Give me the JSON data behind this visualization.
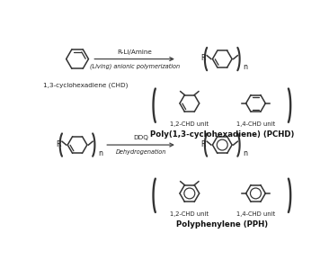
{
  "bg_color": "#ffffff",
  "line_color": "#333333",
  "figsize": [
    3.66,
    3.09
  ],
  "dpi": 100,
  "label_chd": "1,3-cyclohexadiene (CHD)",
  "label_pchd": "Poly(1,3-cyclohexadiene) (PCHD)",
  "label_pph": "Polyphenylene (PPH)",
  "reaction1_top": "R-Li/Amine",
  "reaction1_bot": "(Living) anionic polymerization",
  "reaction2_top": "DDQ",
  "reaction2_bot": "Dehydrogenation",
  "unit12": "1,2-CHD unit",
  "unit14": "1,4-CHD unit"
}
